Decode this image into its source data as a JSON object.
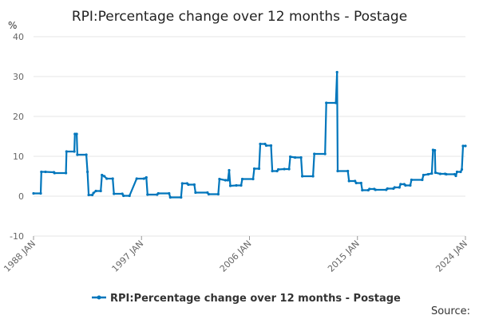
{
  "chart_data": {
    "type": "line",
    "title": "RPI:Percentage change over 12 months - Postage",
    "ylabel": "%",
    "ylim": [
      -10,
      40
    ],
    "yticks": [
      -10,
      0,
      10,
      20,
      30,
      40
    ],
    "xlim": [
      1988.0,
      2024.0
    ],
    "xticks": [
      {
        "value": 1988.0,
        "label": "1988 JAN"
      },
      {
        "value": 1997.0,
        "label": "1997 JAN"
      },
      {
        "value": 2006.0,
        "label": "2006 JAN"
      },
      {
        "value": 2015.0,
        "label": "2015 JAN"
      },
      {
        "value": 2024.0,
        "label": "2024 JAN"
      }
    ],
    "grid": true,
    "legend_position": "bottom",
    "series": [
      {
        "name": "RPI:Percentage change over 12 months - Postage",
        "color": "#0076bc",
        "points": [
          [
            1988.0,
            0.7
          ],
          [
            1988.6,
            0.7
          ],
          [
            1988.65,
            6.1
          ],
          [
            1989.0,
            6.1
          ],
          [
            1989.7,
            6.0
          ],
          [
            1989.75,
            5.8
          ],
          [
            1990.7,
            5.8
          ],
          [
            1990.75,
            11.2
          ],
          [
            1991.4,
            11.2
          ],
          [
            1991.45,
            15.6
          ],
          [
            1991.6,
            15.6
          ],
          [
            1991.65,
            10.4
          ],
          [
            1992.4,
            10.4
          ],
          [
            1992.5,
            6.1
          ],
          [
            1992.6,
            0.3
          ],
          [
            1992.9,
            0.3
          ],
          [
            1993.0,
            0.8
          ],
          [
            1993.2,
            1.3
          ],
          [
            1993.6,
            1.3
          ],
          [
            1993.7,
            5.3
          ],
          [
            1993.9,
            5.0
          ],
          [
            1994.1,
            4.4
          ],
          [
            1994.6,
            4.4
          ],
          [
            1994.7,
            0.6
          ],
          [
            1995.4,
            0.6
          ],
          [
            1995.5,
            0.1
          ],
          [
            1996.0,
            0.1
          ],
          [
            1996.6,
            4.4
          ],
          [
            1997.2,
            4.4
          ],
          [
            1997.4,
            4.7
          ],
          [
            1997.5,
            0.4
          ],
          [
            1998.3,
            0.4
          ],
          [
            1998.4,
            0.7
          ],
          [
            1999.3,
            0.7
          ],
          [
            1999.4,
            -0.3
          ],
          [
            2000.3,
            -0.3
          ],
          [
            2000.4,
            3.2
          ],
          [
            2000.8,
            3.2
          ],
          [
            2000.9,
            2.9
          ],
          [
            2001.4,
            2.9
          ],
          [
            2001.5,
            0.9
          ],
          [
            2002.5,
            0.9
          ],
          [
            2002.6,
            0.5
          ],
          [
            2003.4,
            0.5
          ],
          [
            2003.5,
            4.3
          ],
          [
            2004.0,
            4.0
          ],
          [
            2004.2,
            4.0
          ],
          [
            2004.3,
            6.5
          ],
          [
            2004.4,
            2.6
          ],
          [
            2004.9,
            2.7
          ],
          [
            2005.3,
            2.7
          ],
          [
            2005.4,
            4.3
          ],
          [
            2006.3,
            4.3
          ],
          [
            2006.4,
            6.9
          ],
          [
            2006.8,
            6.9
          ],
          [
            2006.9,
            13.1
          ],
          [
            2007.3,
            13.1
          ],
          [
            2007.4,
            12.7
          ],
          [
            2007.8,
            12.7
          ],
          [
            2007.9,
            6.3
          ],
          [
            2008.3,
            6.3
          ],
          [
            2008.4,
            6.7
          ],
          [
            2008.9,
            6.8
          ],
          [
            2009.3,
            6.8
          ],
          [
            2009.4,
            9.9
          ],
          [
            2009.8,
            9.7
          ],
          [
            2010.3,
            9.7
          ],
          [
            2010.4,
            5.0
          ],
          [
            2011.3,
            5.0
          ],
          [
            2011.4,
            10.6
          ],
          [
            2012.3,
            10.6
          ],
          [
            2012.4,
            23.4
          ],
          [
            2013.2,
            23.4
          ],
          [
            2013.3,
            31.1
          ],
          [
            2013.35,
            6.3
          ],
          [
            2014.2,
            6.3
          ],
          [
            2014.3,
            3.8
          ],
          [
            2014.8,
            3.8
          ],
          [
            2014.9,
            3.3
          ],
          [
            2015.3,
            3.3
          ],
          [
            2015.4,
            1.5
          ],
          [
            2015.9,
            1.5
          ],
          [
            2016.0,
            1.8
          ],
          [
            2016.4,
            1.8
          ],
          [
            2016.5,
            1.6
          ],
          [
            2017.4,
            1.6
          ],
          [
            2017.5,
            1.9
          ],
          [
            2018.0,
            1.9
          ],
          [
            2018.1,
            2.2
          ],
          [
            2018.5,
            2.2
          ],
          [
            2018.6,
            3.0
          ],
          [
            2018.9,
            3.0
          ],
          [
            2019.0,
            2.7
          ],
          [
            2019.4,
            2.7
          ],
          [
            2019.5,
            4.1
          ],
          [
            2020.4,
            4.1
          ],
          [
            2020.5,
            5.3
          ],
          [
            2020.9,
            5.5
          ],
          [
            2021.2,
            5.7
          ],
          [
            2021.3,
            11.6
          ],
          [
            2021.45,
            11.5
          ],
          [
            2021.5,
            5.9
          ],
          [
            2021.9,
            5.6
          ],
          [
            2022.3,
            5.6
          ],
          [
            2022.4,
            5.5
          ],
          [
            2023.1,
            5.5
          ],
          [
            2023.2,
            5.1
          ],
          [
            2023.3,
            6.1
          ],
          [
            2023.6,
            6.1
          ],
          [
            2023.7,
            6.7
          ],
          [
            2023.8,
            12.6
          ],
          [
            2024.0,
            12.6
          ]
        ]
      }
    ]
  },
  "legend": {
    "label": "RPI:Percentage change over 12 months - Postage"
  },
  "footer": {
    "source_label": "Source:"
  }
}
